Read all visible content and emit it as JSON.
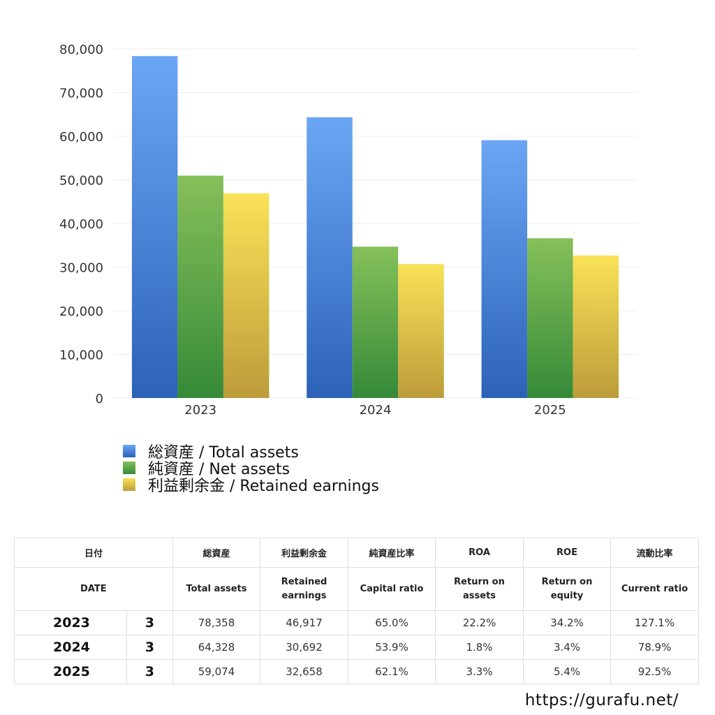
{
  "chart_data": {
    "type": "bar",
    "categories": [
      "2023",
      "2024",
      "2025"
    ],
    "series": [
      {
        "name": "総資産 / Total assets",
        "values": [
          78358,
          64328,
          59074
        ],
        "color_top": "#6ba6f4",
        "color_bottom": "#2c62b8"
      },
      {
        "name": "純資産 / Net assets",
        "values": [
          50950,
          34680,
          36600
        ],
        "color_top": "#86c05a",
        "color_bottom": "#358a38"
      },
      {
        "name": "利益剰余金 / Retained earnings",
        "values": [
          46917,
          30692,
          32658
        ],
        "color_top": "#f9e257",
        "color_bottom": "#bc9c3a"
      }
    ],
    "ylim": [
      0,
      80000
    ],
    "yticks": [
      0,
      10000,
      20000,
      30000,
      40000,
      50000,
      60000,
      70000,
      80000
    ],
    "ytick_labels": [
      "0",
      "10,000",
      "20,000",
      "30,000",
      "40,000",
      "50,000",
      "60,000",
      "70,000",
      "80,000"
    ],
    "grid": true,
    "legend_placement": "bottom-left"
  },
  "table": {
    "header_jp": {
      "date": "日付",
      "total_assets": "総資産",
      "retained": "利益剰余金",
      "capital_ratio": "純資産比率",
      "roa": "ROA",
      "roe": "ROE",
      "current_ratio": "流動比率"
    },
    "header_en": {
      "date": "DATE",
      "total_assets": "Total assets",
      "retained_1": "Retained",
      "retained_2": "earnings",
      "capital_ratio": "Capital ratio",
      "roa_1": "Return on",
      "roa_2": "assets",
      "roe_1": "Return on",
      "roe_2": "equity",
      "current_ratio": "Current ratio"
    },
    "rows": [
      {
        "year": "2023",
        "month": "3",
        "total_assets": "78,358",
        "retained": "46,917",
        "capital_ratio": "65.0%",
        "roa": "22.2%",
        "roe": "34.2%",
        "current_ratio": "127.1%"
      },
      {
        "year": "2024",
        "month": "3",
        "total_assets": "64,328",
        "retained": "30,692",
        "capital_ratio": "53.9%",
        "roa": "1.8%",
        "roe": "3.4%",
        "current_ratio": "78.9%"
      },
      {
        "year": "2025",
        "month": "3",
        "total_assets": "59,074",
        "retained": "32,658",
        "capital_ratio": "62.1%",
        "roa": "3.3%",
        "roe": "5.4%",
        "current_ratio": "92.5%"
      }
    ]
  },
  "footer": {
    "url": "https://gurafu.net/"
  }
}
